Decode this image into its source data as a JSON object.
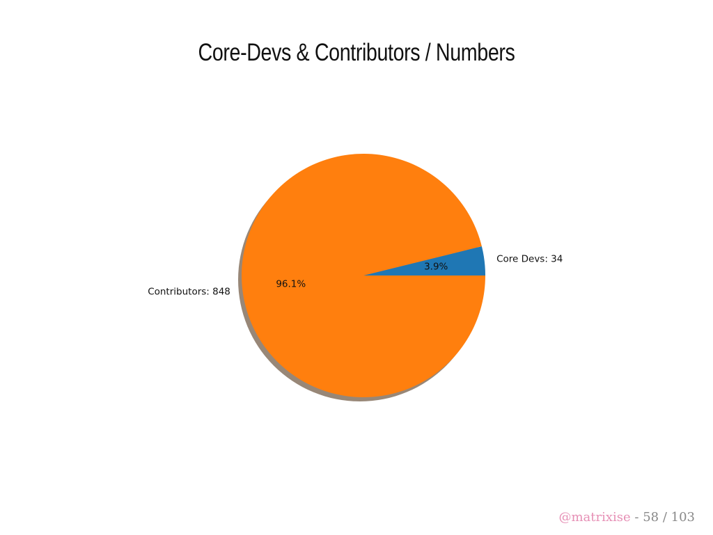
{
  "slide": {
    "title": "Core-Devs & Contributors / Numbers"
  },
  "chart_data": {
    "type": "pie",
    "shadow": true,
    "slices": [
      {
        "label": "Core Devs: 34",
        "value": 34,
        "pct_label": "3.9%",
        "color": "#1f77b4"
      },
      {
        "label": "Contributors: 848",
        "value": 848,
        "pct_label": "96.1%",
        "color": "#ff7f0e"
      }
    ]
  },
  "footer": {
    "handle": "@matrixise",
    "separator": " - ",
    "page": "58 / 103"
  }
}
